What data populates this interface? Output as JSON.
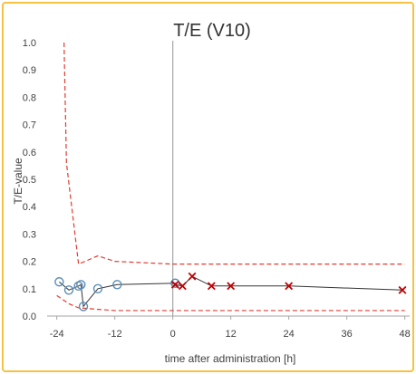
{
  "chart_data": {
    "type": "scatter",
    "title": "T/E (V10)",
    "xlabel": "time after administration [h]",
    "ylabel": "T/E-value",
    "xlim": [
      -26,
      49
    ],
    "ylim": [
      0,
      1.0
    ],
    "x_ticks": [
      -24,
      -12,
      0,
      12,
      24,
      36,
      48
    ],
    "x_tick_labels": [
      "-24",
      "-12",
      "0",
      "12",
      "24",
      "36",
      "48"
    ],
    "y_ticks": [
      0.0,
      0.1,
      0.2,
      0.3,
      0.4,
      0.5,
      0.6,
      0.7,
      0.8,
      0.9,
      1.0
    ],
    "y_tick_labels": [
      "0.0",
      "0.1",
      "0.2",
      "0.3",
      "0.4",
      "0.5",
      "0.6",
      "0.7",
      "0.8",
      "0.9",
      "1.0"
    ],
    "reference_x": 0,
    "grid": false,
    "legend": "none",
    "colors": {
      "border": "#F5C242",
      "pre_marker": "#5B8DB8",
      "post_marker": "#C00000",
      "limits": "#E03C31",
      "line": "#333333",
      "axis": "#A6A6A6",
      "vline": "#A6A6A6"
    },
    "series": [
      {
        "role": "measured",
        "marker": "circle",
        "x": [
          -23.5,
          -21.5,
          -19.5,
          -19.0,
          -18.5,
          -15.5,
          -11.5,
          0.5
        ],
        "y": [
          0.125,
          0.095,
          0.11,
          0.115,
          0.035,
          0.1,
          0.115,
          0.12
        ]
      },
      {
        "role": "measured",
        "marker": "x",
        "x": [
          0.5,
          2.0,
          4.0,
          8.0,
          12.0,
          24.0,
          47.5
        ],
        "y": [
          0.115,
          0.11,
          0.145,
          0.11,
          0.11,
          0.11,
          0.095
        ]
      },
      {
        "role": "upper-limit",
        "style": "dashed",
        "x": [
          -22.5,
          -22.0,
          -19.5,
          -15.5,
          -12.0,
          0,
          48
        ],
        "y": [
          1.0,
          0.56,
          0.19,
          0.22,
          0.2,
          0.19,
          0.19
        ]
      },
      {
        "role": "lower-limit",
        "style": "dashed",
        "x": [
          -24.0,
          -21.5,
          -19.5,
          -12.0,
          0,
          48
        ],
        "y": [
          0.075,
          0.045,
          0.03,
          0.02,
          0.02,
          0.02
        ]
      }
    ]
  }
}
